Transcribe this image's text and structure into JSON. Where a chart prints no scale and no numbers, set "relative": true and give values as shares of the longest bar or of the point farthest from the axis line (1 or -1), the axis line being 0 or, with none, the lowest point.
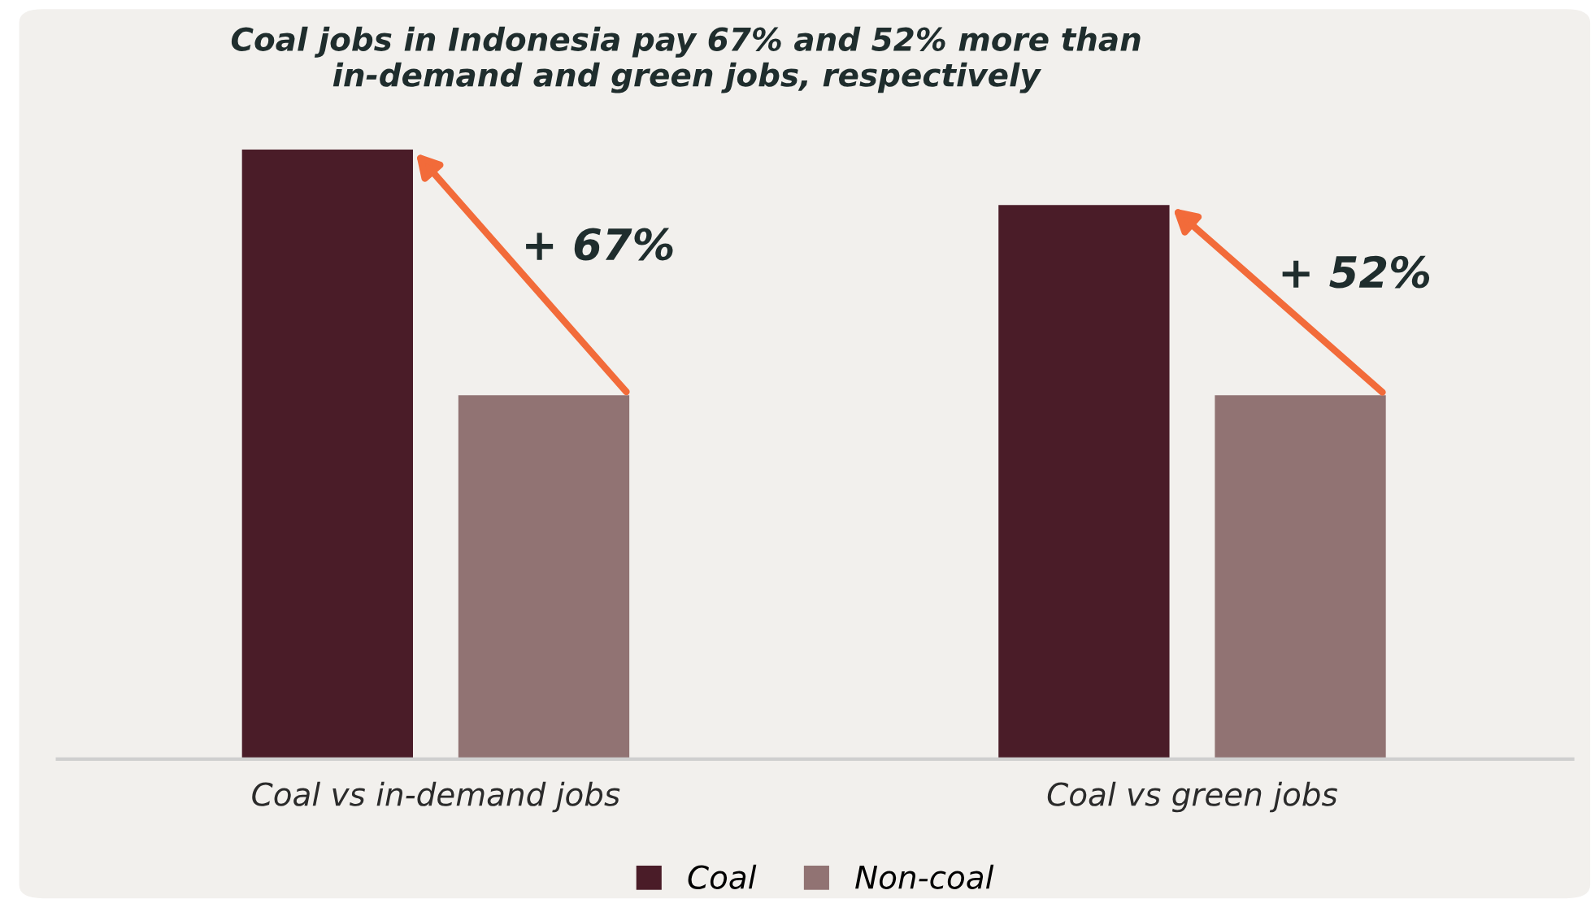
{
  "chart_data": {
    "type": "bar",
    "title": "Coal jobs in Indonesia pay 67% and 52% more than\nin-demand and green jobs, respectively",
    "categories": [
      "Coal vs in-demand jobs",
      "Coal vs green jobs"
    ],
    "relative": true,
    "series": [
      {
        "name": "Coal",
        "color": "#4a1c28",
        "values": [
          1,
          0.909
        ]
      },
      {
        "name": "Non-coal",
        "color": "#917373",
        "values": [
          0.597,
          0.597
        ]
      }
    ],
    "annotations": [
      "+ 67%",
      "+ 52%"
    ],
    "legend": "bottom",
    "grid": false
  }
}
